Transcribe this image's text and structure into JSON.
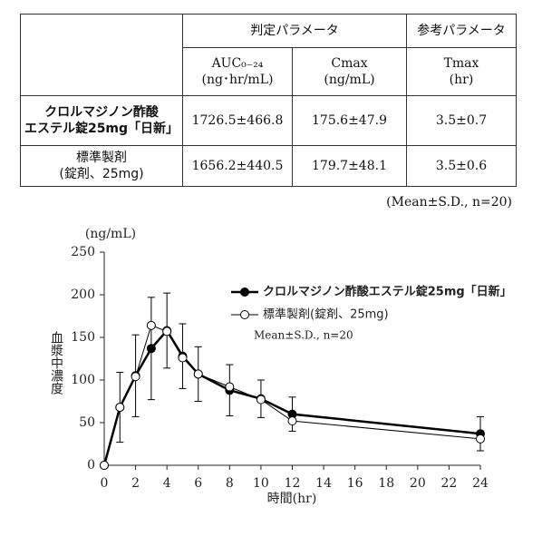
{
  "table": {
    "header": {
      "group1": "判定パラメータ",
      "group2": "参考パラメータ",
      "cols": [
        [
          "AUC₀₋₂₄",
          "(ng･hr/mL)"
        ],
        [
          "Cmax",
          "(ng/mL)"
        ],
        [
          "Tmax",
          "(hr)"
        ]
      ]
    },
    "rows": [
      {
        "label": [
          "クロルマジノン酢酸",
          "エステル錠25mg「日新」"
        ],
        "cells": [
          "1726.5±466.8",
          "175.6±47.9",
          "3.5±0.7"
        ]
      },
      {
        "label": [
          "標準製剤",
          "(錠剤、25mg)"
        ],
        "cells": [
          "1656.2±440.5",
          "179.7±48.1",
          "3.5±0.6"
        ]
      }
    ],
    "note": "(Mean±S.D., n=20)"
  },
  "chart_data": {
    "type": "line",
    "y_unit": "(ng/mL)",
    "ylabel": "血漿中濃度",
    "xlabel": "時間(hr)",
    "annotation": "Mean±S.D., n=20",
    "x": [
      0,
      1,
      2,
      3,
      4,
      5,
      6,
      8,
      10,
      12,
      24
    ],
    "series": [
      {
        "name": "クロルマジノン酢酸エステル錠25mg「日新」",
        "color": "#000000",
        "marker": "filled",
        "values": [
          0,
          68,
          105,
          137,
          158,
          128,
          107,
          88,
          78,
          60,
          37
        ],
        "errors": [
          0,
          41,
          48,
          60,
          44,
          38,
          32,
          30,
          22,
          20,
          20
        ]
      },
      {
        "name": "標準製剤(錠剤、25mg)",
        "color": "#000000",
        "marker": "open",
        "values": [
          0,
          68,
          104,
          164,
          157,
          126,
          107,
          92,
          77,
          52,
          31
        ]
      }
    ],
    "xlim": [
      0,
      24
    ],
    "xticks": [
      0,
      2,
      4,
      6,
      8,
      10,
      12,
      14,
      16,
      18,
      20,
      22,
      24
    ],
    "ylim": [
      0,
      250
    ],
    "yticks": [
      0,
      50,
      100,
      150,
      200,
      250
    ]
  }
}
